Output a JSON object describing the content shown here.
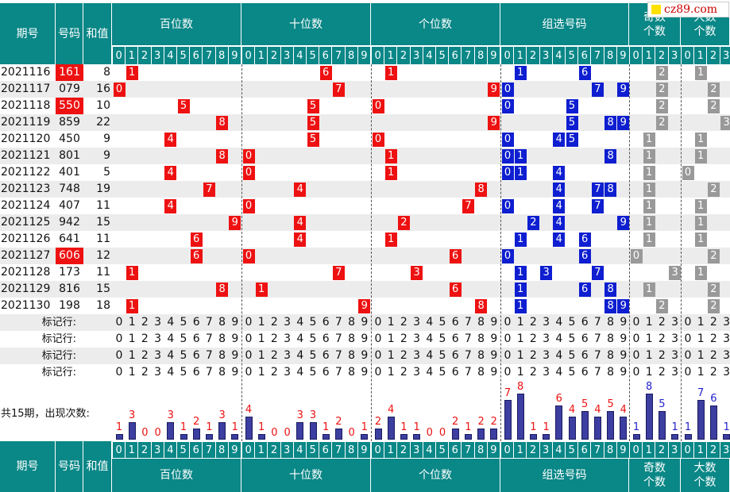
{
  "header": {
    "qihao": "期号",
    "haoma": "号码",
    "hezhi": "和值",
    "sections": [
      "百位数",
      "十位数",
      "个位数",
      "组选号码",
      "奇数\n个数",
      "大数\n个数"
    ]
  },
  "brand": "cz89.com",
  "digits10": [
    "0",
    "1",
    "2",
    "3",
    "4",
    "5",
    "6",
    "7",
    "8",
    "9"
  ],
  "digits4": [
    "0",
    "1",
    "2",
    "3"
  ],
  "marker_label": "标记行:",
  "count_label": "共15期，出现次数:",
  "chart_data": {
    "type": "table",
    "rows": [
      {
        "issue": "2021116",
        "num": "161",
        "sum": "8",
        "hi": true
      },
      {
        "issue": "2021117",
        "num": "079",
        "sum": "16",
        "hi": false
      },
      {
        "issue": "2021118",
        "num": "550",
        "sum": "10",
        "hi": true
      },
      {
        "issue": "2021119",
        "num": "859",
        "sum": "22",
        "hi": false
      },
      {
        "issue": "2021120",
        "num": "450",
        "sum": "9",
        "hi": false
      },
      {
        "issue": "2021121",
        "num": "801",
        "sum": "9",
        "hi": false
      },
      {
        "issue": "2021122",
        "num": "401",
        "sum": "5",
        "hi": false
      },
      {
        "issue": "2021123",
        "num": "748",
        "sum": "19",
        "hi": false
      },
      {
        "issue": "2021124",
        "num": "407",
        "sum": "11",
        "hi": false
      },
      {
        "issue": "2021125",
        "num": "942",
        "sum": "15",
        "hi": false
      },
      {
        "issue": "2021126",
        "num": "641",
        "sum": "11",
        "hi": false
      },
      {
        "issue": "2021127",
        "num": "606",
        "sum": "12",
        "hi": true
      },
      {
        "issue": "2021128",
        "num": "173",
        "sum": "11",
        "hi": false
      },
      {
        "issue": "2021129",
        "num": "816",
        "sum": "15",
        "hi": false
      },
      {
        "issue": "2021130",
        "num": "198",
        "sum": "18",
        "hi": false
      }
    ],
    "counts": {
      "hundreds": [
        1,
        3,
        0,
        0,
        3,
        1,
        2,
        1,
        3,
        1
      ],
      "tens": [
        4,
        1,
        0,
        0,
        3,
        3,
        1,
        2,
        0,
        1
      ],
      "units": [
        2,
        4,
        1,
        1,
        0,
        0,
        2,
        1,
        2,
        2
      ],
      "group": [
        7,
        8,
        1,
        1,
        6,
        4,
        5,
        4,
        5,
        4
      ],
      "odd": [
        1,
        8,
        5,
        1
      ],
      "big": [
        1,
        7,
        6,
        1
      ]
    }
  }
}
